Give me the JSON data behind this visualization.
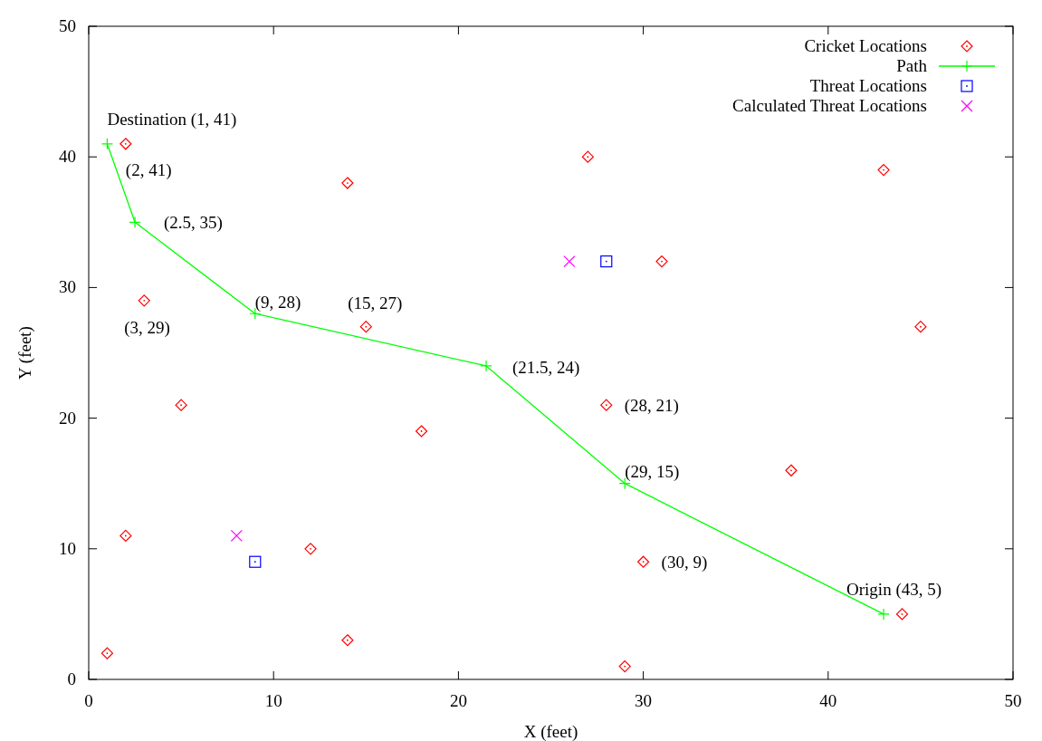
{
  "chart_data": {
    "type": "scatter",
    "xlabel": "X (feet)",
    "ylabel": "Y (feet)",
    "xlim": [
      0,
      50
    ],
    "ylim": [
      0,
      50
    ],
    "xticks": [
      0,
      10,
      20,
      30,
      40,
      50
    ],
    "yticks": [
      0,
      10,
      20,
      30,
      40,
      50
    ],
    "grid": false,
    "legend": "top right",
    "series": [
      {
        "name": "Cricket Locations",
        "marker": "diamond",
        "color": "#ff0000",
        "x": [
          1,
          2,
          2,
          3,
          5,
          12,
          14,
          14,
          15,
          18,
          27,
          28,
          29,
          30,
          31,
          38,
          43,
          44,
          45
        ],
        "values": [
          2,
          11,
          41,
          29,
          21,
          10,
          38,
          3,
          27,
          19,
          40,
          21,
          1,
          9,
          32,
          16,
          39,
          5,
          27
        ]
      },
      {
        "name": "Path",
        "type": "line",
        "marker": "cross",
        "color": "#00ff00",
        "x": [
          43,
          29,
          21.5,
          9,
          2.5,
          1
        ],
        "values": [
          5,
          15,
          24,
          28,
          35,
          41
        ]
      },
      {
        "name": "Threat Locations",
        "marker": "square",
        "color": "#0000ff",
        "x": [
          9,
          28
        ],
        "values": [
          9,
          32
        ]
      },
      {
        "name": "Calculated Threat Locations",
        "marker": "cross",
        "color": "#ff00ff",
        "x": [
          8,
          26
        ],
        "values": [
          11,
          32
        ]
      }
    ],
    "annotations": [
      {
        "text": "Destination (1, 41)",
        "x": 1,
        "y": 41
      },
      {
        "text": "(2, 41)",
        "x": 2,
        "y": 41
      },
      {
        "text": "(2.5, 35)",
        "x": 2.5,
        "y": 35
      },
      {
        "text": "(9, 28)",
        "x": 9,
        "y": 28
      },
      {
        "text": "(15, 27)",
        "x": 15,
        "y": 27
      },
      {
        "text": "(3, 29)",
        "x": 3,
        "y": 29
      },
      {
        "text": "(21.5, 24)",
        "x": 21.5,
        "y": 24
      },
      {
        "text": "(28, 21)",
        "x": 28,
        "y": 21
      },
      {
        "text": "(29, 15)",
        "x": 29,
        "y": 15
      },
      {
        "text": "(30, 9)",
        "x": 30,
        "y": 9
      },
      {
        "text": "Origin (43, 5)",
        "x": 43,
        "y": 5
      }
    ]
  }
}
